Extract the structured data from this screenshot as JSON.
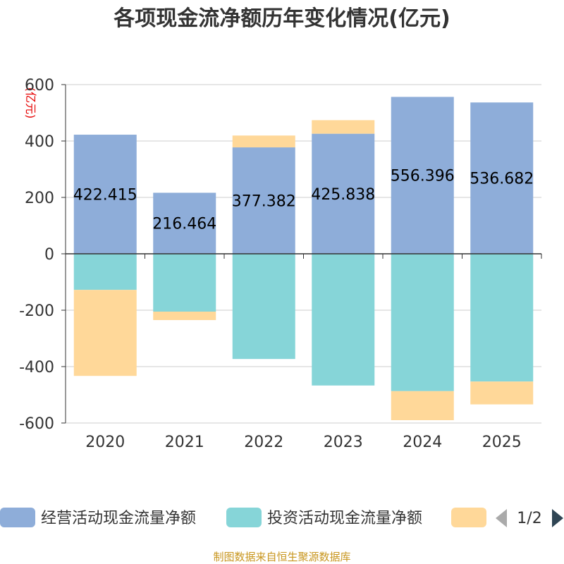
{
  "chart_data": {
    "type": "bar",
    "stacked": true,
    "title": "各项现金流净额历年变化情况(亿元)",
    "ylabel": "(亿元)",
    "xlabel": "",
    "ylim": [
      -600,
      600
    ],
    "yticks": [
      600,
      400,
      200,
      0,
      -200,
      -400,
      -600
    ],
    "ytick_labels": [
      "600",
      "400",
      "200",
      "0",
      "-200",
      "-400",
      "-600"
    ],
    "grid": true,
    "categories": [
      "2020",
      "2021",
      "2022",
      "2023",
      "2024",
      "2025"
    ],
    "series": [
      {
        "name": "经营活动现金流量净额",
        "color": "#8eadd9",
        "values": [
          422.415,
          216.464,
          377.382,
          425.838,
          556.396,
          536.682
        ],
        "labels": [
          "422.415",
          "216.464",
          "377.382",
          "425.838",
          "556.396",
          "536.682"
        ]
      },
      {
        "name": "投资活动现金流量净额",
        "color": "#86d5d8",
        "values": [
          -128,
          -205,
          -373,
          -467,
          -487,
          -453
        ],
        "labels": null
      },
      {
        "name": "",
        "color": "#ffd899",
        "values": [
          -305,
          -30,
          42,
          48,
          -103,
          -81
        ],
        "labels": null
      }
    ],
    "legend": {
      "position": "bottom",
      "items": [
        {
          "label": "经营活动现金流量净额",
          "color": "#8eadd9"
        },
        {
          "label": "投资活动现金流量净额",
          "color": "#86d5d8"
        },
        {
          "label": "",
          "color": "#ffd899"
        }
      ],
      "page_text": "1/2"
    },
    "source": "制图数据来自恒生聚源数据库"
  }
}
